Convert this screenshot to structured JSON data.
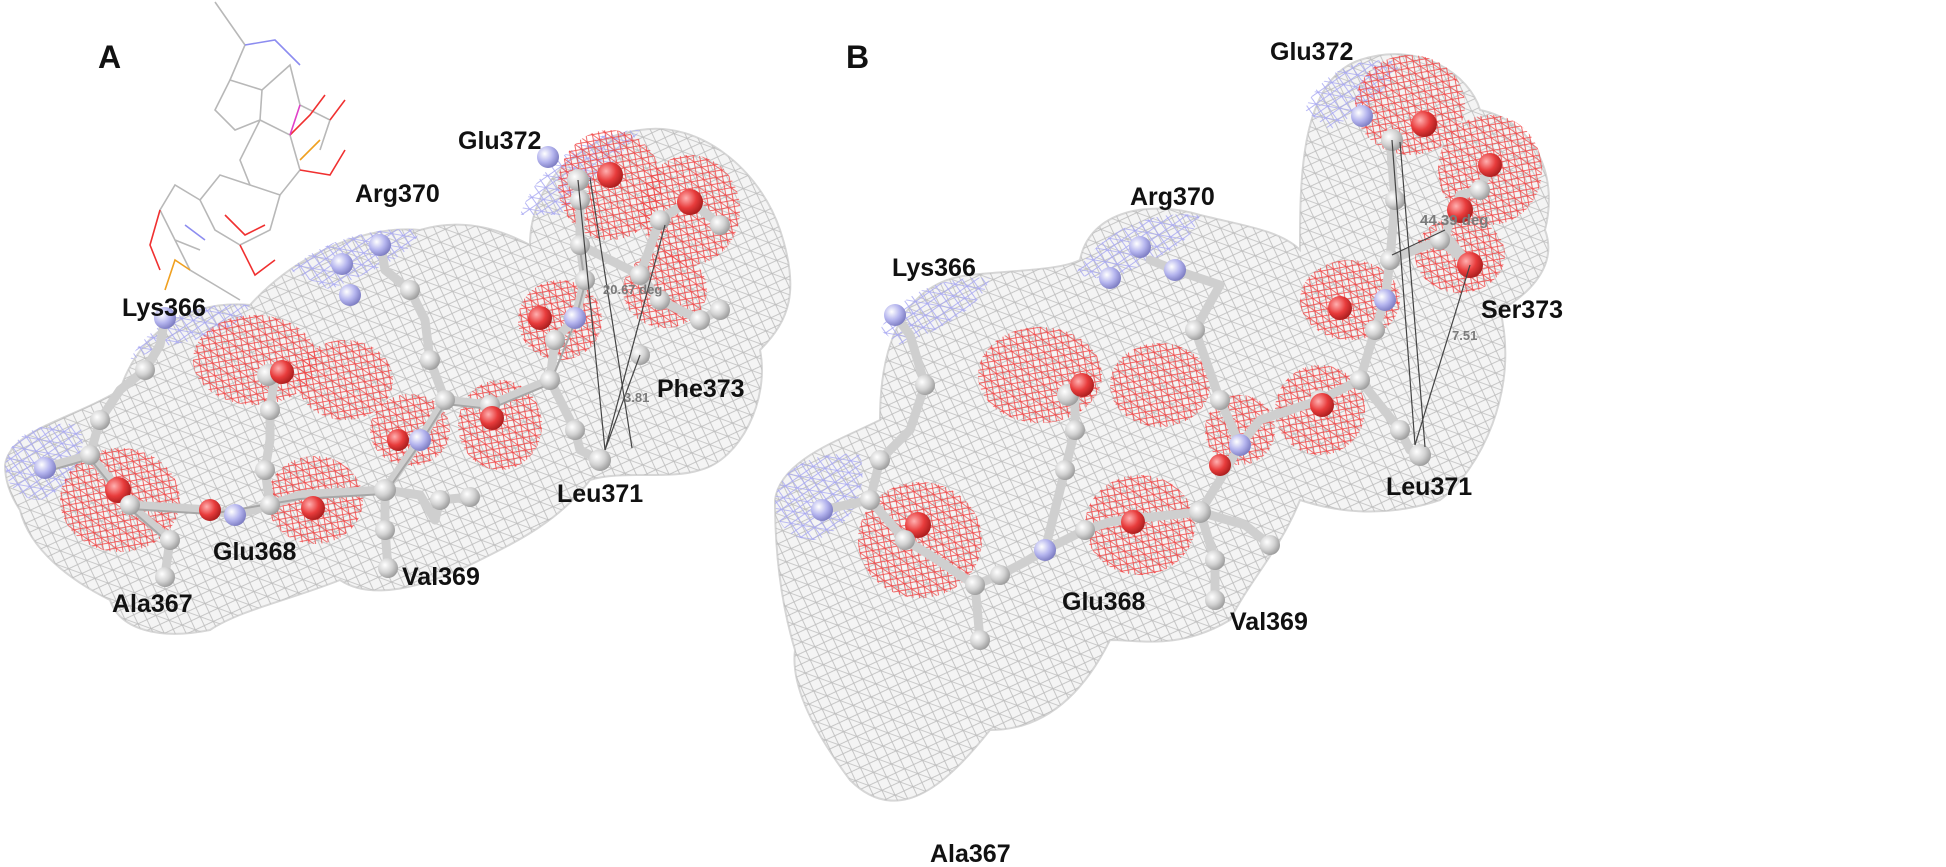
{
  "panels": [
    {
      "letter": "A",
      "residues": {
        "lys366": "Lys366",
        "ala367": "Ala367",
        "glu368": "Glu368",
        "val369": "Val369",
        "arg370": "Arg370",
        "leu371": "Leu371",
        "glu372": "Glu372",
        "phe373": "Phe373"
      },
      "angle": "20.67 deg",
      "distance": "3.81"
    },
    {
      "letter": "B",
      "residues": {
        "lys366": "Lys366",
        "ala367": "Ala367",
        "glu368": "Glu368",
        "val369": "Val369",
        "arg370": "Arg370",
        "leu371": "Leu371",
        "glu372": "Glu372",
        "ser373": "Ser373"
      },
      "angle": "44.39 deg",
      "distance": "7.51"
    }
  ],
  "colors": {
    "surface_gray": "#c9c9c9",
    "surface_red": "#f04a4a",
    "surface_blue": "#a9a9f2",
    "atom_carbon": "#cfcfcf",
    "atom_oxygen": "#e83c3c",
    "atom_nitrogen": "#b4b4ee",
    "ligand_gray": "#b8b8b8",
    "ligand_red": "#f03030",
    "ligand_blue": "#8c8cf0",
    "ligand_orange": "#f0a020",
    "ligand_magenta": "#e040c8"
  }
}
